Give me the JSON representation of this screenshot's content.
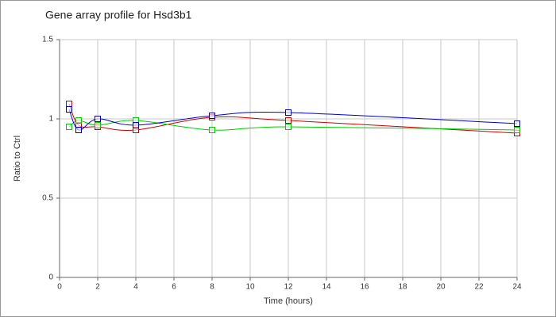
{
  "chart_data": {
    "type": "line",
    "title": "Gene array profile for Hsd3b1",
    "x_label": "Time (hours)",
    "y_label": "Ratio to Ctrl",
    "x": [
      0.5,
      1,
      2,
      4,
      8,
      12,
      24
    ],
    "series": [
      {
        "color": "#cc0000",
        "values": [
          1.095,
          0.96,
          0.95,
          0.93,
          1.01,
          0.99,
          0.91
        ]
      },
      {
        "color": "#00cc00",
        "values": [
          0.95,
          0.99,
          0.96,
          0.99,
          0.93,
          0.95,
          0.93
        ]
      },
      {
        "color": "#0000cc",
        "values": [
          1.06,
          0.93,
          1.0,
          0.96,
          1.02,
          1.04,
          0.97
        ]
      }
    ],
    "xlim": [
      0,
      24
    ],
    "xticks": [
      0,
      2,
      4,
      6,
      8,
      10,
      12,
      14,
      16,
      18,
      20,
      22,
      24
    ],
    "ylim": [
      0,
      1.5
    ],
    "yticks": [
      0,
      0.5,
      1,
      1.5
    ],
    "grid": true
  }
}
